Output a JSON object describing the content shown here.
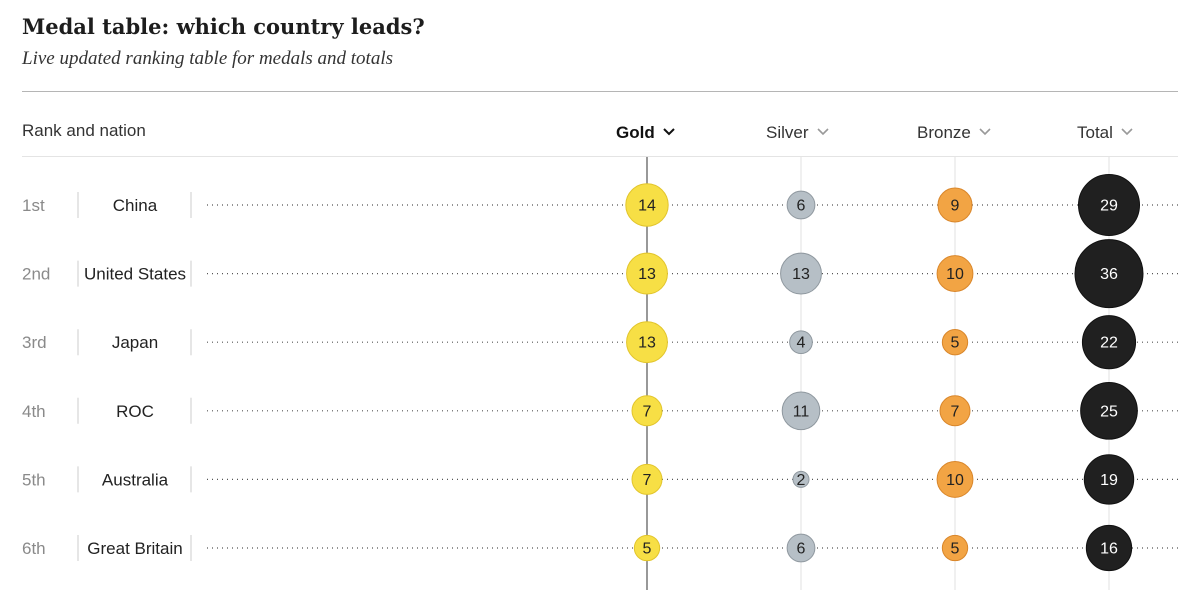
{
  "title": "Medal table: which country leads?",
  "subtitle": "Live updated ranking table for medals and totals",
  "header": {
    "rank_nation": "Rank and nation",
    "columns": [
      {
        "key": "gold",
        "label": "Gold",
        "active": true
      },
      {
        "key": "silver",
        "label": "Silver",
        "active": false
      },
      {
        "key": "bronze",
        "label": "Bronze",
        "active": false
      },
      {
        "key": "total",
        "label": "Total",
        "active": false
      }
    ]
  },
  "colors": {
    "gold": "#f7df45",
    "silver": "#b6bfc6",
    "bronze": "#f2a444",
    "total": "#202020",
    "gold_stroke": "#e2c52c",
    "silver_stroke": "#8f989f",
    "bronze_stroke": "#d9862a",
    "total_stroke": "#111111"
  },
  "chart_data": {
    "type": "table",
    "columns": [
      "Gold",
      "Silver",
      "Bronze",
      "Total"
    ],
    "rows": [
      {
        "rank": "1st",
        "nation": "China",
        "gold": 14,
        "silver": 6,
        "bronze": 9,
        "total": 29
      },
      {
        "rank": "2nd",
        "nation": "United States",
        "gold": 13,
        "silver": 13,
        "bronze": 10,
        "total": 36
      },
      {
        "rank": "3rd",
        "nation": "Japan",
        "gold": 13,
        "silver": 4,
        "bronze": 5,
        "total": 22
      },
      {
        "rank": "4th",
        "nation": "ROC",
        "gold": 7,
        "silver": 11,
        "bronze": 7,
        "total": 25
      },
      {
        "rank": "5th",
        "nation": "Australia",
        "gold": 7,
        "silver": 2,
        "bronze": 10,
        "total": 19
      },
      {
        "rank": "6th",
        "nation": "Great Britain",
        "gold": 5,
        "silver": 6,
        "bronze": 5,
        "total": 16
      }
    ]
  }
}
